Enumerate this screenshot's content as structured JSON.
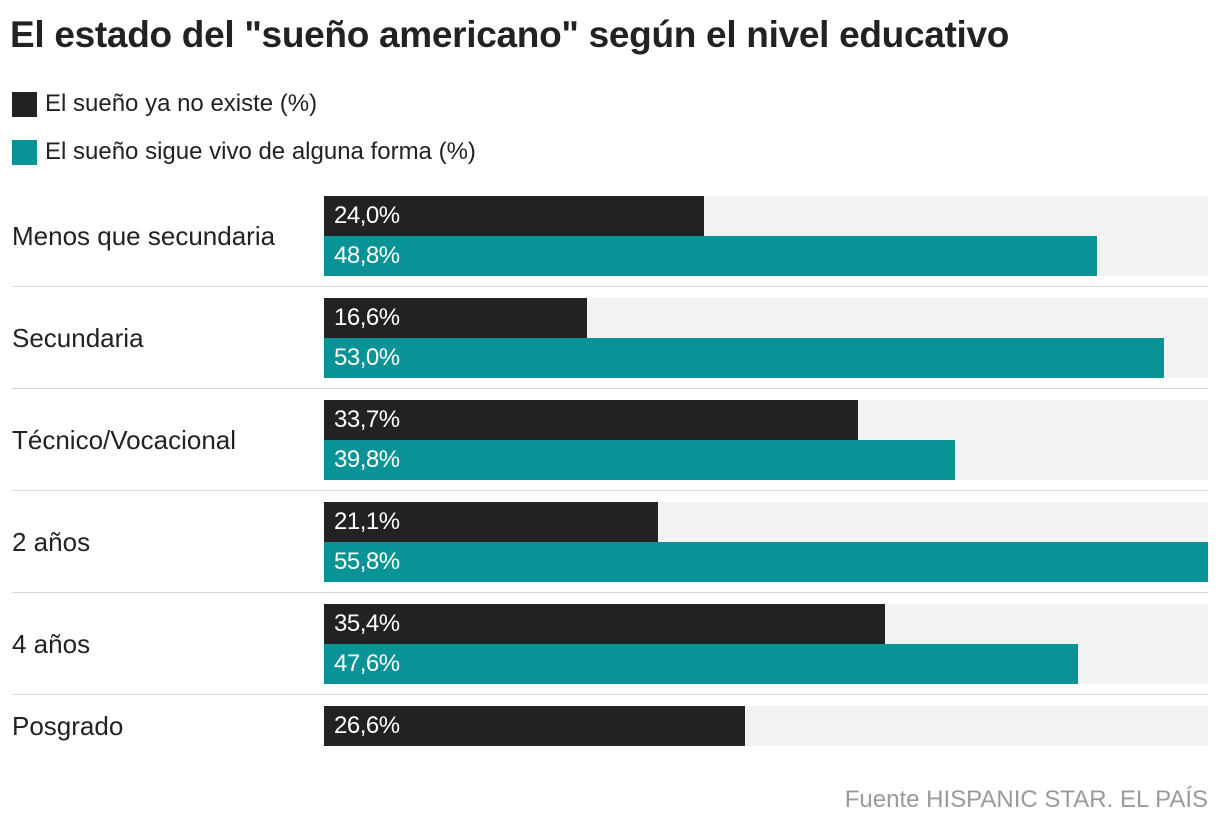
{
  "chart_data": {
    "type": "bar",
    "orientation": "horizontal",
    "title": "El estado del \"sueño americano\" según el nivel educativo",
    "categories": [
      "Menos que secundaria",
      "Secundaria",
      "Técnico/Vocacional",
      "2 años",
      "4 años",
      "Posgrado"
    ],
    "series": [
      {
        "name": "El sueño ya no existe (%)",
        "color": "#222222",
        "values": [
          24.0,
          16.6,
          33.7,
          21.1,
          35.4,
          26.6
        ],
        "labels": [
          "24,0%",
          "16,6%",
          "33,7%",
          "21,1%",
          "35,4%",
          "26,6%"
        ]
      },
      {
        "name": "El sueño sigue vivo de alguna forma (%)",
        "color": "#0a9396",
        "values": [
          48.8,
          53.0,
          39.8,
          55.8,
          47.6,
          null
        ],
        "labels": [
          "48,8%",
          "53,0%",
          "39,8%",
          "55,8%",
          "47,6%",
          null
        ]
      }
    ],
    "xlim": [
      0,
      55.8
    ],
    "source": "Fuente HISPANIC STAR. EL PAÍS"
  }
}
